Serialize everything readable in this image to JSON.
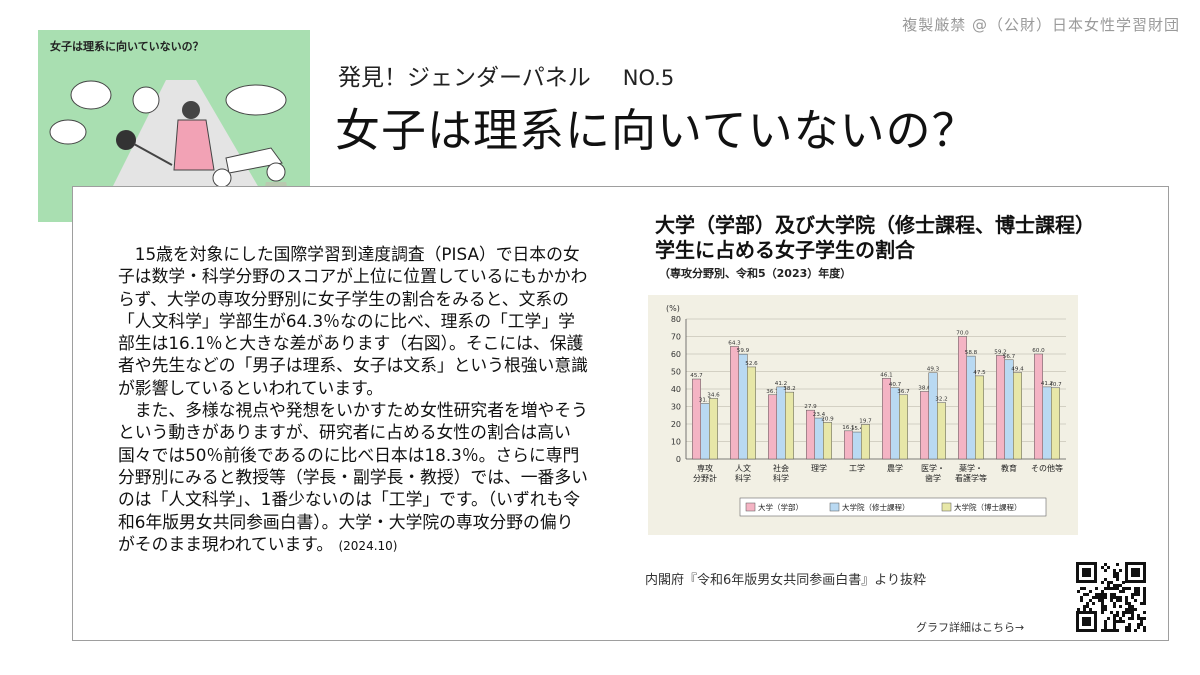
{
  "copyright": "複製厳禁 @（公財）日本女性学習財団",
  "panel": {
    "subtitle": "発見！ジェンダーパネル",
    "number": "NO.5",
    "title": "女子は理系に向いていないの？",
    "thumbnail_title": "女子は理系に向いていないの？"
  },
  "article": {
    "paragraphs": [
      "15歳を対象にした国際学習到達度調査（PISA）で日本の女子は数学・科学分野のスコアが上位に位置しているにもかかわらず、大学の専攻分野別に女子学生の割合をみると、文系の「人文科学」学部生が64.3％なのに比べ、理系の「工学」学部生は16.1％と大きな差があります（右図）。そこには、保護者や先生などの「男子は理系、女子は文系」という根強い意識が影響しているといわれています。",
      "また、多様な視点や発想をいかすため女性研究者を増やそうという動きがありますが、研究者に占める女性の割合は高い国々では50％前後であるのに比べ日本は18.3％。さらに専門分野別にみると教授等（学長・副学長・教授）では、一番多いのは「人文科学」、1番少ないのは「工学」です。（いずれも令和6年版男女共同参画白書）。大学・大学院の専攻分野の偏りがそのまま現われています。"
    ],
    "date": "(2024.10)"
  },
  "source": "内閣府『令和6年版男女共同参画白書』より抜粋",
  "link_text": "グラフ詳細はこちら→",
  "chart_data": {
    "type": "bar",
    "title": "大学（学部）及び大学院（修士課程、博士課程）学生に占める女子学生の割合",
    "subtitle": "（専攻分野別、令和5（2023）年度）",
    "ylabel": "(%)",
    "ylim": [
      0,
      80
    ],
    "yticks": [
      0,
      10,
      20,
      30,
      40,
      50,
      60,
      70,
      80
    ],
    "grid": true,
    "legend_position": "bottom",
    "categories": [
      [
        "専攻",
        "分野計"
      ],
      [
        "人文",
        "科学"
      ],
      [
        "社会",
        "科学"
      ],
      [
        "理学"
      ],
      [
        "工学"
      ],
      [
        "農学"
      ],
      [
        "医学・",
        "歯学"
      ],
      [
        "薬学・",
        "看護学等"
      ],
      [
        "教育"
      ],
      [
        "その他等"
      ]
    ],
    "series": [
      {
        "name": "大学（学部）",
        "color": "#f4b4c4",
        "values": [
          45.7,
          64.3,
          36.7,
          27.9,
          16.1,
          46.1,
          38.6,
          70.0,
          59.2,
          60.0
        ]
      },
      {
        "name": "大学院（修士課程）",
        "color": "#b9d9f2",
        "values": [
          31.7,
          59.9,
          41.2,
          23.4,
          15.4,
          40.7,
          49.3,
          58.8,
          56.7,
          41.2
        ]
      },
      {
        "name": "大学院（博士課程）",
        "color": "#e7e7a8",
        "values": [
          34.6,
          52.6,
          38.2,
          20.9,
          19.7,
          36.7,
          32.2,
          47.5,
          49.4,
          40.7
        ]
      }
    ]
  }
}
